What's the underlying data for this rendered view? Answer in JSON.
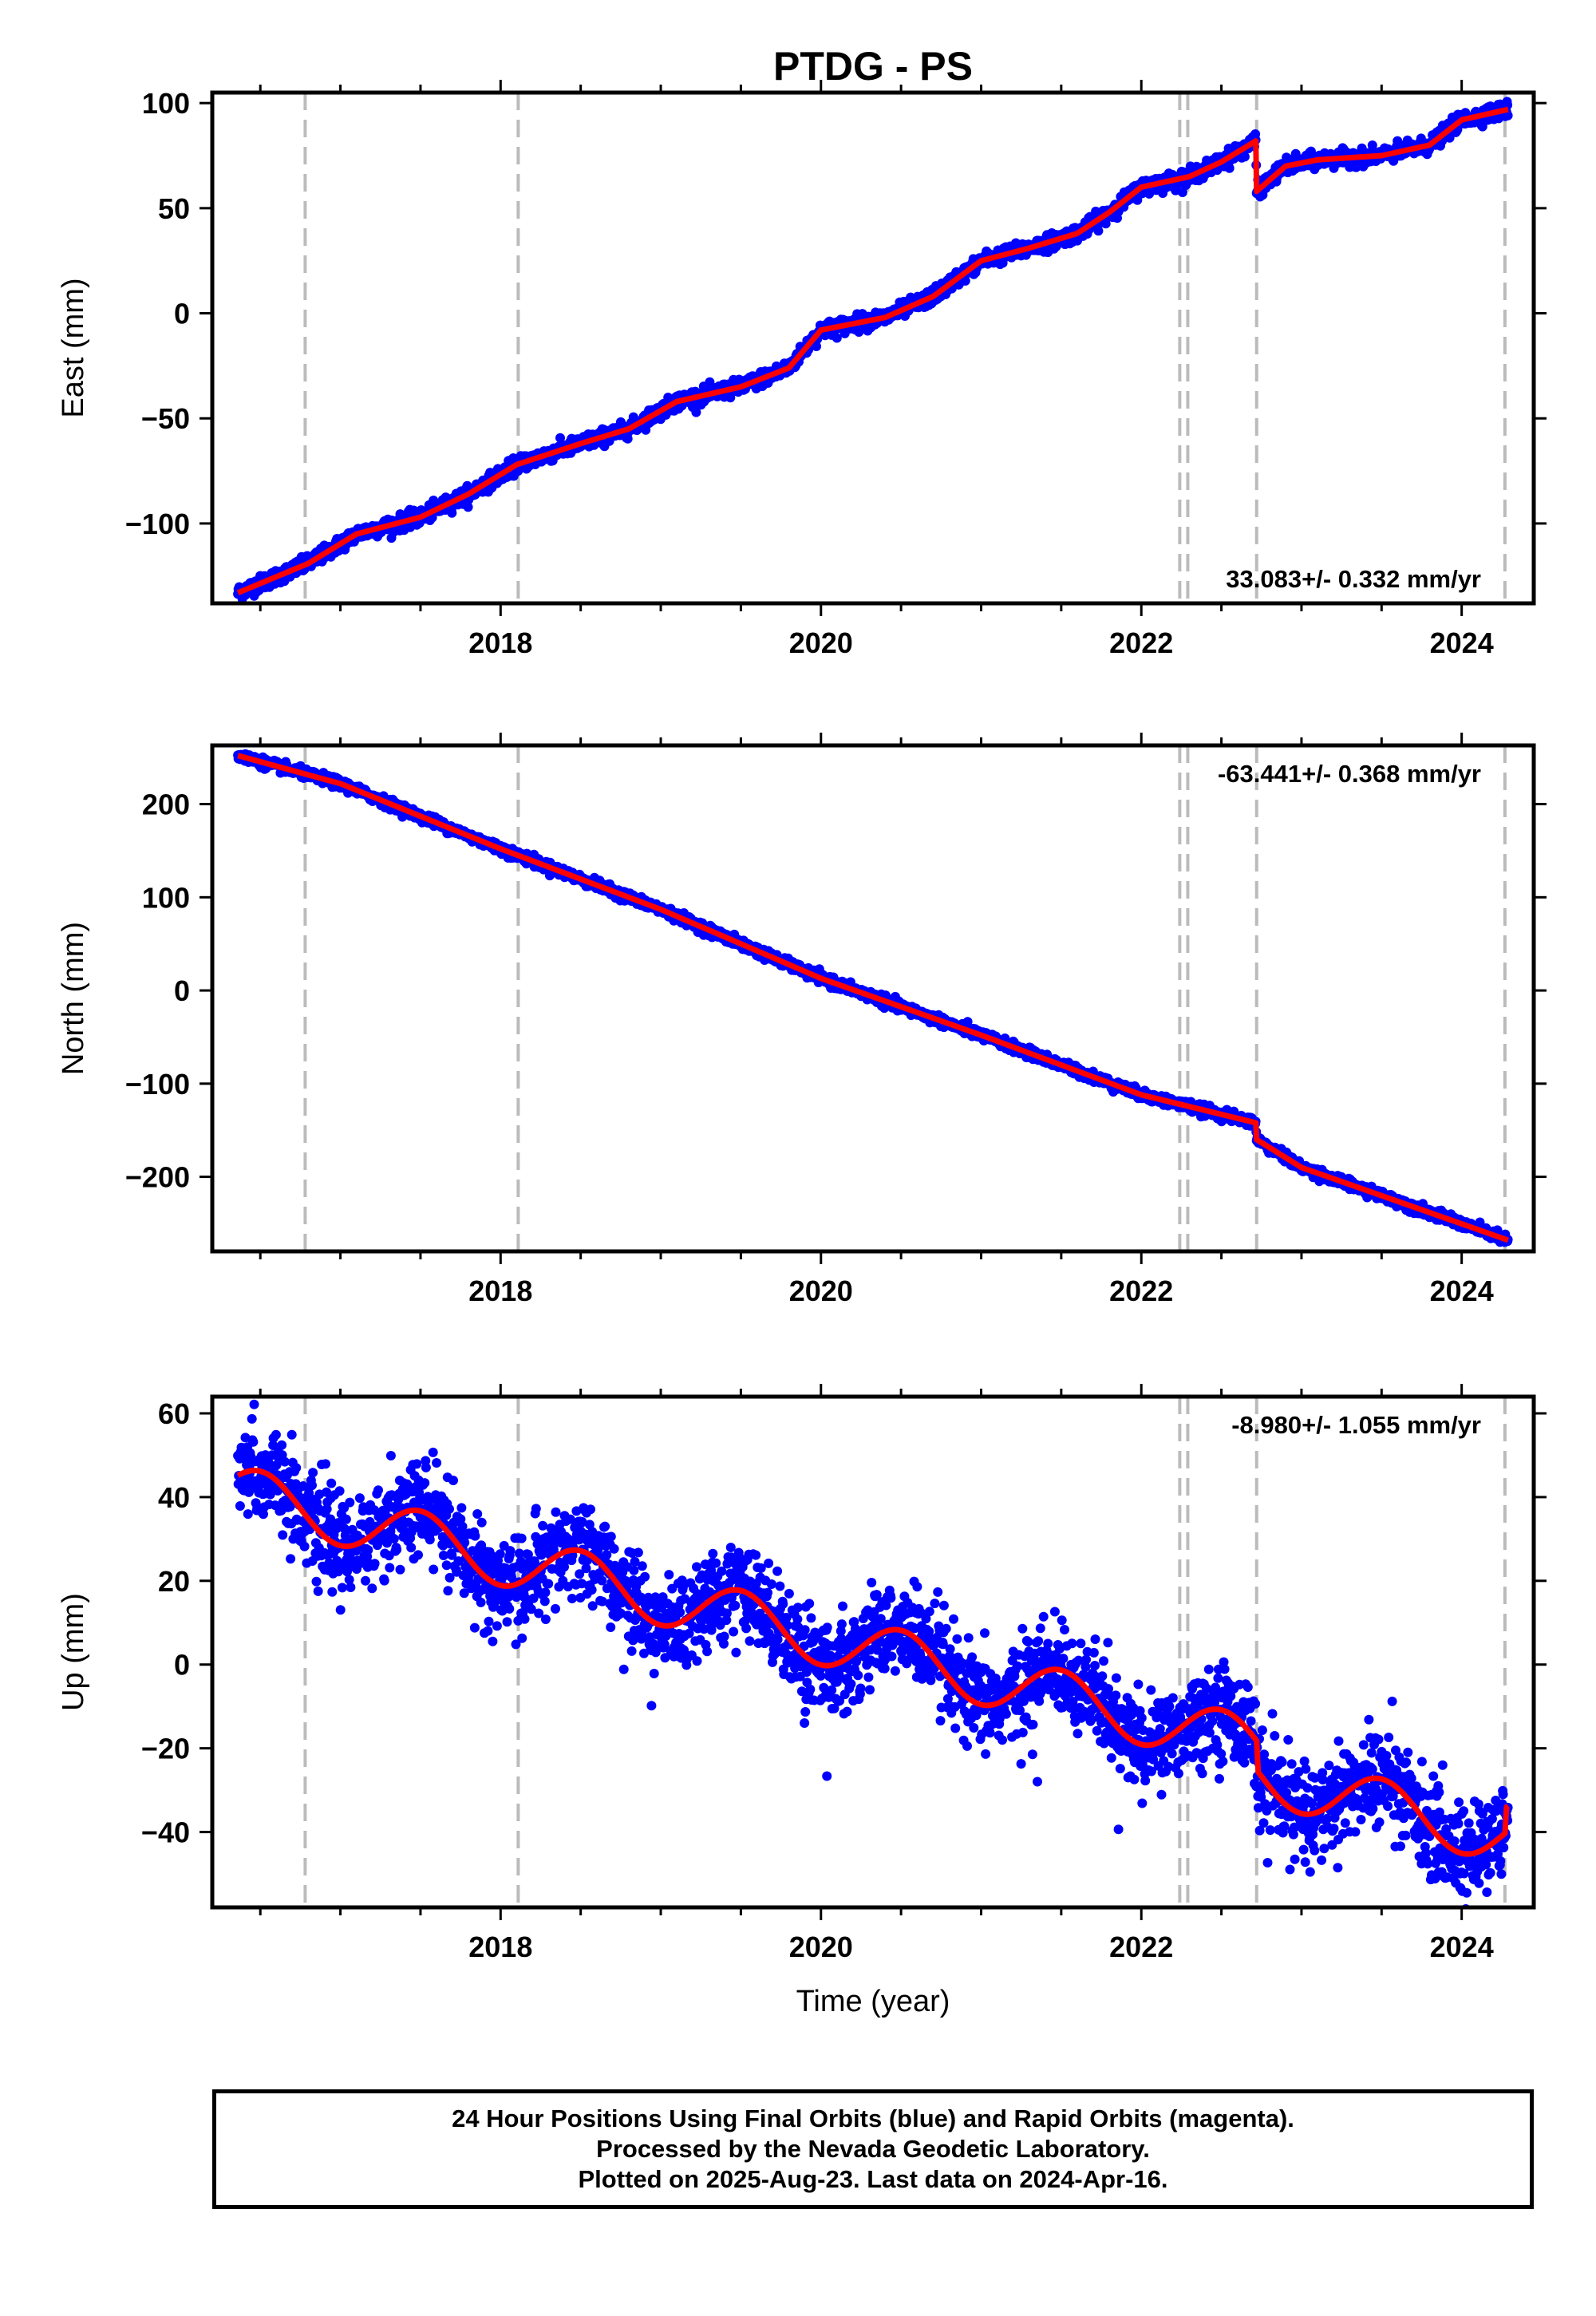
{
  "title": "PTDG - PS",
  "footer": {
    "line1": "24 Hour Positions Using Final Orbits (blue) and Rapid Orbits (magenta).",
    "line2": "Processed by the Nevada Geodetic Laboratory.",
    "line3": "Plotted on 2025-Aug-23. Last data on 2024-Apr-16."
  },
  "colors": {
    "data": "#0000ff",
    "model": "#ff0000",
    "event_line": "#bbbbbb",
    "frame": "#000000"
  },
  "chart_data": [
    {
      "type": "scatter",
      "ylabel": "East (mm)",
      "xlabel": "",
      "rate_label": "33.083+/- 0.332 mm/yr",
      "xlim": [
        2016.2,
        2024.45
      ],
      "ylim": [
        -138,
        105
      ],
      "xticks": [
        2018,
        2020,
        2022,
        2024
      ],
      "xtick_labels": [
        "2018",
        "2020",
        "2022",
        "2024"
      ],
      "yticks": [
        -100,
        -50,
        0,
        50,
        100
      ],
      "ytick_labels": [
        "−100",
        "−50",
        "0",
        "50",
        "100"
      ],
      "event_lines": [
        2016.78,
        2018.11,
        2022.24,
        2022.29,
        2022.72,
        2024.27
      ],
      "model_curve": {
        "x": [
          2016.36,
          2016.8,
          2017.1,
          2017.5,
          2017.8,
          2018.1,
          2018.5,
          2018.8,
          2019.1,
          2019.5,
          2019.8,
          2020.0,
          2020.4,
          2020.7,
          2021.0,
          2021.3,
          2021.6,
          2021.8,
          2022.0,
          2022.3,
          2022.5,
          2022.715,
          2022.72,
          2022.9,
          2023.1,
          2023.5,
          2023.8,
          2024.0,
          2024.29
        ],
        "y": [
          -133,
          -119,
          -105,
          -97,
          -86,
          -72,
          -62,
          -55,
          -42,
          -35,
          -26,
          -8,
          -2,
          8,
          25,
          31,
          38,
          48,
          60,
          65,
          72,
          82,
          58,
          70,
          73,
          75,
          80,
          92,
          97
        ]
      },
      "series": [
        {
          "name": "",
          "x": [
            2016.36,
            2017.0,
            2017.5,
            2018.0,
            2018.5,
            2019.0,
            2019.5,
            2020.0,
            2020.5,
            2021.0,
            2021.5,
            2022.0,
            2022.5,
            2022.7,
            2022.8,
            2023.0,
            2023.5,
            2024.0,
            2024.29
          ],
          "y": [
            -133,
            -110,
            -97,
            -75,
            -62,
            -48,
            -35,
            -8,
            0,
            24,
            34,
            58,
            70,
            82,
            62,
            71,
            75,
            90,
            97
          ]
        }
      ]
    },
    {
      "type": "scatter",
      "ylabel": "North (mm)",
      "xlabel": "",
      "rate_label": "-63.441+/- 0.368 mm/yr",
      "xlim": [
        2016.2,
        2024.45
      ],
      "ylim": [
        -280,
        263
      ],
      "xticks": [
        2018,
        2020,
        2022,
        2024
      ],
      "xtick_labels": [
        "2018",
        "2020",
        "2022",
        "2024"
      ],
      "yticks": [
        -200,
        -100,
        0,
        100,
        200
      ],
      "ytick_labels": [
        "−200",
        "−100",
        "0",
        "100",
        "200"
      ],
      "event_lines": [
        2016.78,
        2018.11,
        2022.24,
        2022.29,
        2022.72,
        2024.27
      ],
      "model_curve": {
        "x": [
          2016.36,
          2017.0,
          2018.0,
          2019.0,
          2020.0,
          2021.0,
          2022.0,
          2022.715,
          2022.72,
          2023.0,
          2024.29
        ],
        "y": [
          252,
          222,
          152,
          87,
          13,
          -48,
          -112,
          -142,
          -160,
          -190,
          -268
        ]
      },
      "series": [
        {
          "name": "",
          "x": [
            2016.36,
            2017.0,
            2018.0,
            2019.0,
            2020.0,
            2021.0,
            2022.0,
            2022.7,
            2022.75,
            2023.0,
            2024.29
          ],
          "y": [
            252,
            222,
            152,
            87,
            13,
            -48,
            -112,
            -142,
            -162,
            -190,
            -268
          ]
        }
      ]
    },
    {
      "type": "scatter",
      "ylabel": "Up (mm)",
      "xlabel": "Time (year)",
      "rate_label": "-8.980+/- 1.055 mm/yr",
      "xlim": [
        2016.2,
        2024.45
      ],
      "ylim": [
        -58,
        64
      ],
      "xticks": [
        2018,
        2020,
        2022,
        2024
      ],
      "xtick_labels": [
        "2018",
        "2020",
        "2022",
        "2024"
      ],
      "yticks": [
        -40,
        -20,
        0,
        20,
        40,
        60
      ],
      "ytick_labels": [
        "−40",
        "−20",
        "0",
        "20",
        "40",
        "60"
      ],
      "event_lines": [
        2016.78,
        2018.11,
        2022.24,
        2022.29,
        2022.72,
        2024.27
      ],
      "model_curve": {
        "trend_start_year": 2016.36,
        "trend_intercept": 41,
        "trend_rate": -9.5,
        "annual_amplitude": 6.5,
        "annual_peak_phase": 0.5,
        "x_end": 2024.29,
        "offsets": [
          {
            "x": 2022.72,
            "dy": -7
          },
          {
            "x": 2024.27,
            "dy": 6
          }
        ]
      },
      "series": [
        {
          "name": "",
          "x": [
            2016.36,
            2016.5,
            2017.0,
            2017.5,
            2018.0,
            2018.5,
            2019.0,
            2019.5,
            2020.0,
            2020.5,
            2021.0,
            2021.5,
            2022.0,
            2022.5,
            2022.7,
            2022.8,
            2023.0,
            2023.5,
            2024.0,
            2024.29
          ],
          "y": [
            38,
            40,
            24,
            29,
            15,
            21,
            6,
            12,
            -3,
            3,
            -12,
            -6,
            -21,
            -16,
            -22,
            -29,
            -35,
            -29,
            -44,
            -38
          ],
          "scatter_sd": 5.5
        }
      ]
    }
  ]
}
